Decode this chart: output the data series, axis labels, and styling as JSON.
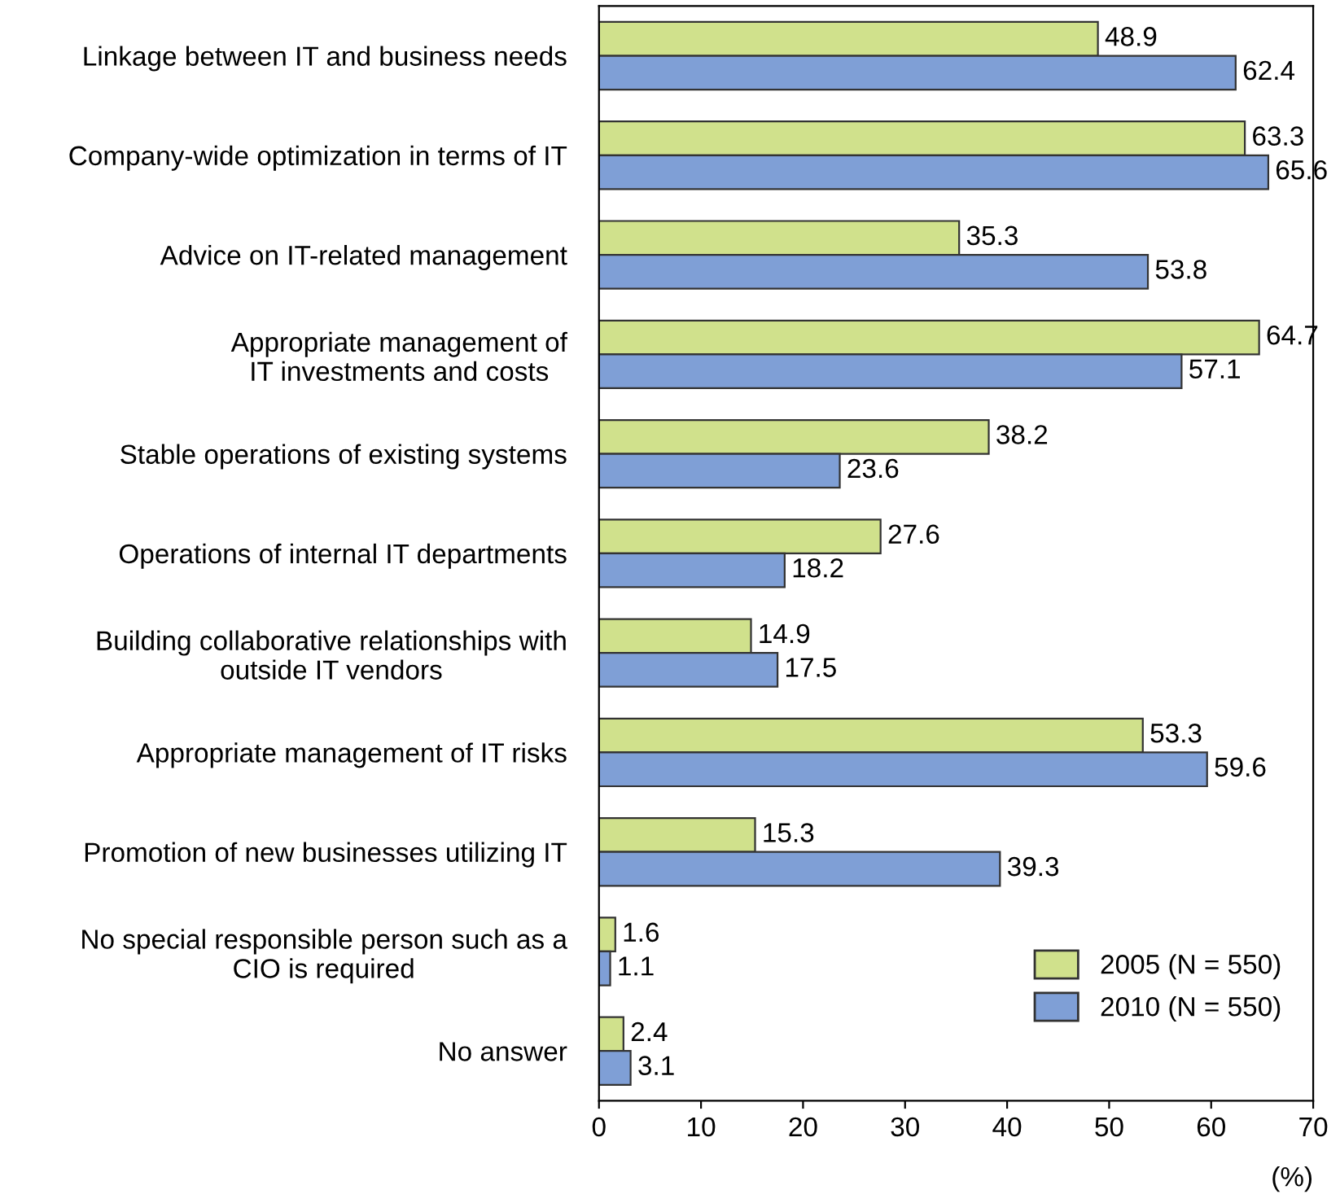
{
  "chart_data": {
    "type": "bar",
    "orientation": "horizontal",
    "categories": [
      "Linkage between IT and business needs",
      "Company-wide optimization in terms of IT",
      "Advice on IT-related management",
      "Appropriate management of\nIT investments and costs",
      "Stable operations of existing systems",
      "Operations of internal IT departments",
      "Building collaborative relationships with\noutside IT vendors",
      "Appropriate management of IT risks",
      "Promotion of new businesses utilizing IT",
      "No special responsible person such as a\nCIO is required",
      "No answer"
    ],
    "series": [
      {
        "name": "2005 (N = 550)",
        "color": "#d0e18c",
        "values": [
          48.9,
          63.3,
          35.3,
          64.7,
          38.2,
          27.6,
          14.9,
          53.3,
          15.3,
          1.6,
          2.4
        ]
      },
      {
        "name": "2010 (N = 550)",
        "color": "#7f9fd6",
        "values": [
          62.4,
          65.6,
          53.8,
          57.1,
          23.6,
          18.2,
          17.5,
          59.6,
          39.3,
          1.1,
          3.1
        ]
      }
    ],
    "xlabel": "(%)",
    "xlim": [
      0,
      70
    ],
    "xticks": [
      0,
      10,
      20,
      30,
      40,
      50,
      60,
      70
    ],
    "data_labels": true,
    "grid": false,
    "legend": "bottom right"
  }
}
